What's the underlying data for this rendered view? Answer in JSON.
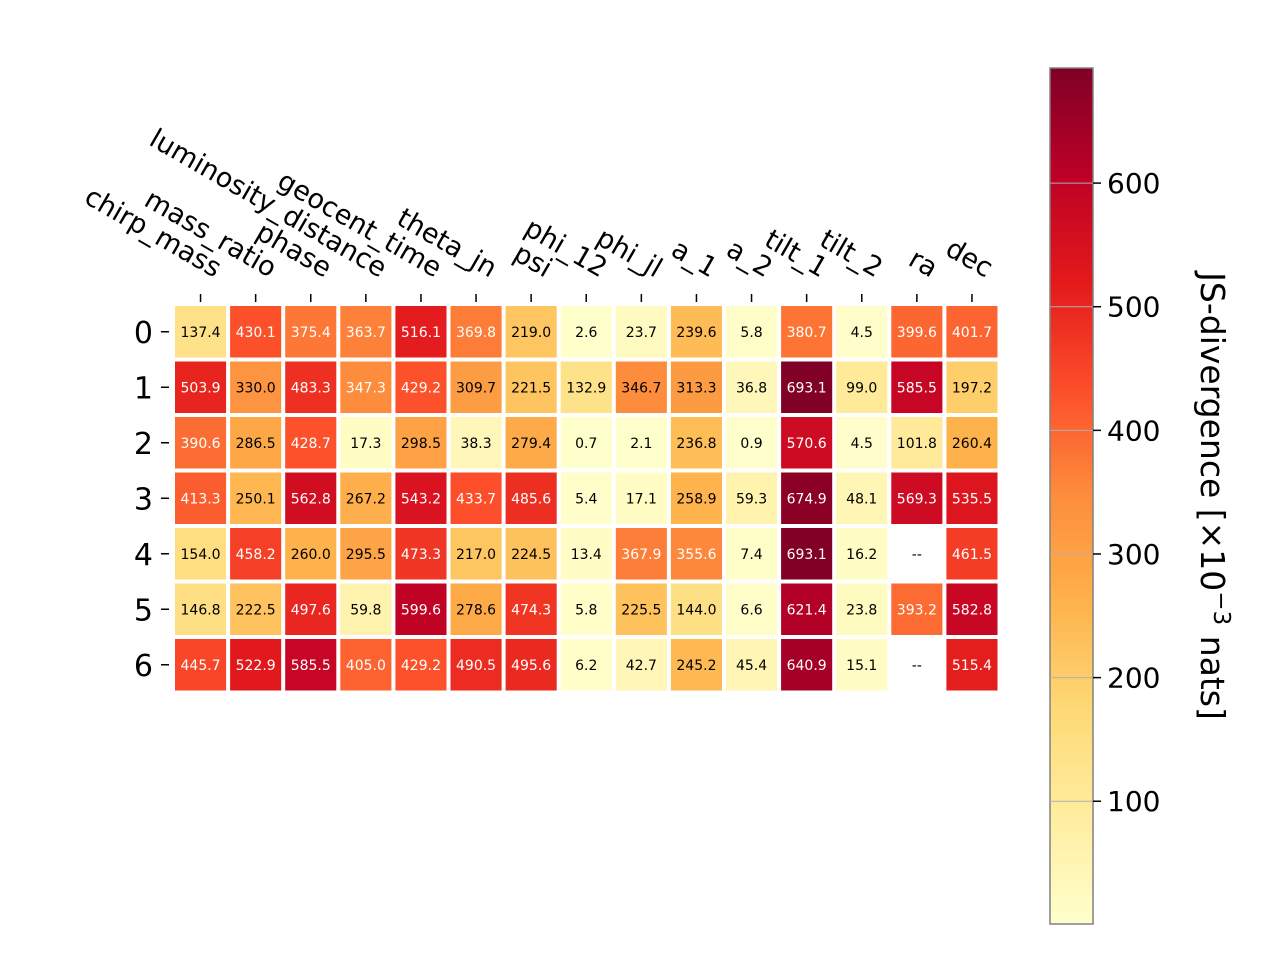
{
  "chart_data": {
    "type": "heatmap",
    "title": "",
    "xlabel": "",
    "ylabel": "",
    "columns": [
      "chirp_mass",
      "mass_ratio",
      "phase",
      "luminosity_distance",
      "geocent_time",
      "theta_jn",
      "psi",
      "phi_12",
      "phi_jl",
      "a_1",
      "a_2",
      "tilt_1",
      "tilt_2",
      "ra",
      "dec"
    ],
    "rows": [
      "0",
      "1",
      "2",
      "3",
      "4",
      "5",
      "6"
    ],
    "values": [
      [
        137.4,
        430.1,
        375.4,
        363.7,
        516.1,
        369.8,
        219.0,
        2.6,
        23.7,
        239.6,
        5.8,
        380.7,
        4.5,
        399.6,
        401.7
      ],
      [
        503.9,
        330.0,
        483.3,
        347.3,
        429.2,
        309.7,
        221.5,
        132.9,
        346.7,
        313.3,
        36.8,
        693.1,
        99.0,
        585.5,
        197.2
      ],
      [
        390.6,
        286.5,
        428.7,
        17.3,
        298.5,
        38.3,
        279.4,
        0.7,
        2.1,
        236.8,
        0.9,
        570.6,
        4.5,
        101.8,
        260.4
      ],
      [
        413.3,
        250.1,
        562.8,
        267.2,
        543.2,
        433.7,
        485.6,
        5.4,
        17.1,
        258.9,
        59.3,
        674.9,
        48.1,
        569.3,
        535.5
      ],
      [
        154.0,
        458.2,
        260.0,
        295.5,
        473.3,
        217.0,
        224.5,
        13.4,
        367.9,
        355.6,
        7.4,
        693.1,
        16.2,
        null,
        461.5
      ],
      [
        146.8,
        222.5,
        497.6,
        59.8,
        599.6,
        278.6,
        474.3,
        5.8,
        225.5,
        144.0,
        6.6,
        621.4,
        23.8,
        393.2,
        582.8
      ],
      [
        445.7,
        522.9,
        585.5,
        405.0,
        429.2,
        490.5,
        495.6,
        6.2,
        42.7,
        245.2,
        45.4,
        640.9,
        15.1,
        null,
        515.4
      ]
    ],
    "missing_label": "--",
    "colorbar": {
      "label_main": "JS-divergence [×10",
      "label_exp": "−3",
      "label_tail": " nats]",
      "colormap": "YlOrRd",
      "range": [
        0.7,
        693.1
      ],
      "ticks": [
        100,
        200,
        300,
        400,
        500,
        600
      ],
      "tick_labels": [
        "100",
        "200",
        "300",
        "400",
        "500",
        "600"
      ]
    }
  }
}
